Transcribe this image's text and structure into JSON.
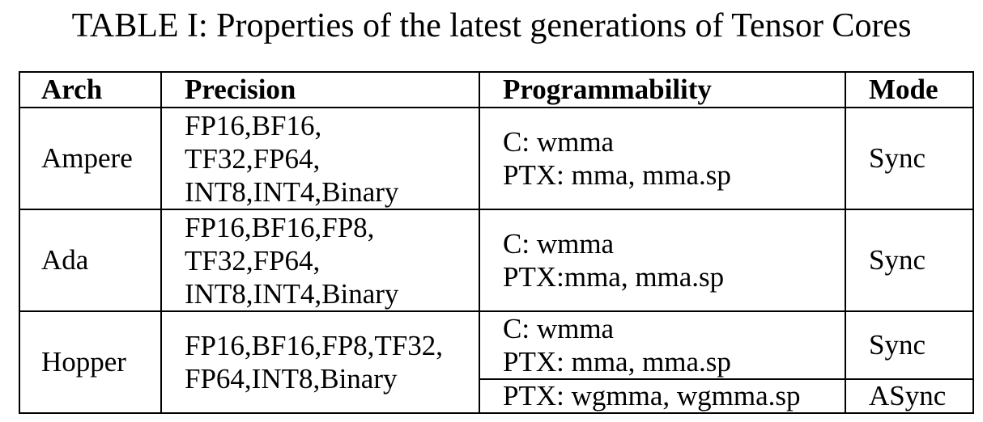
{
  "caption": "TABLE I: Properties of the latest generations of Tensor Cores",
  "headers": {
    "arch": "Arch",
    "precision": "Precision",
    "programmability": "Programmability",
    "mode": "Mode"
  },
  "rows": [
    {
      "arch": "Ampere",
      "precision": [
        "FP16,BF16,",
        "TF32,FP64,",
        "INT8,INT4,Binary"
      ],
      "programmability": [
        "C: wmma",
        "PTX: mma, mma.sp"
      ],
      "mode": "Sync"
    },
    {
      "arch": "Ada",
      "precision": [
        "FP16,BF16,FP8,",
        "TF32,FP64,",
        "INT8,INT4,Binary"
      ],
      "programmability": [
        "C: wmma",
        "PTX:mma, mma.sp"
      ],
      "mode": "Sync"
    },
    {
      "arch": "Hopper",
      "precision": [
        "FP16,BF16,FP8,TF32,",
        "FP64,INT8,Binary"
      ],
      "programmability": [
        "C: wmma",
        "PTX: mma, mma.sp"
      ],
      "mode": "Sync",
      "extra_programmability": "PTX: wgmma, wgmma.sp",
      "extra_mode": "ASync"
    }
  ]
}
